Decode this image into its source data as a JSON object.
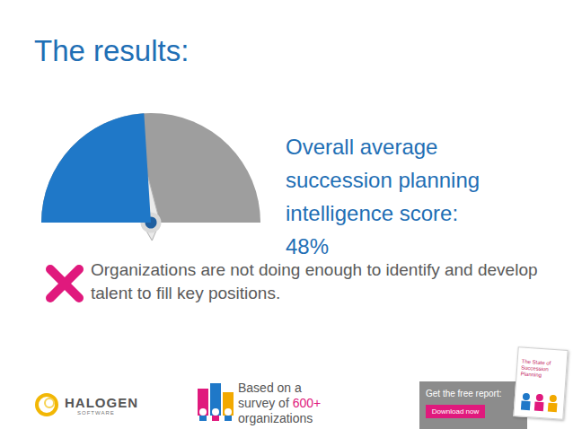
{
  "title": "The results:",
  "chart_data": {
    "type": "gauge",
    "values": [
      48
    ],
    "value_labels": [
      "48%"
    ],
    "ylim": [
      0,
      100
    ],
    "colors": [
      "#1f78c8",
      "#9e9e9e"
    ],
    "tick_labels": false
  },
  "caption": "Overall average succession planning intelligence score:",
  "annotation": "Organizations are not doing enough to identify and develop talent to fill key positions.",
  "footer": {
    "logo": "HALOGEN",
    "logo_sub": "SOFTWARE",
    "survey": {
      "before": "Based on a survey of ",
      "highlight": "600+",
      "after": " organizations"
    },
    "report": {
      "prompt": "Get the free report:",
      "button": "Download now",
      "cover_title": "The State of Succession Planning"
    }
  }
}
